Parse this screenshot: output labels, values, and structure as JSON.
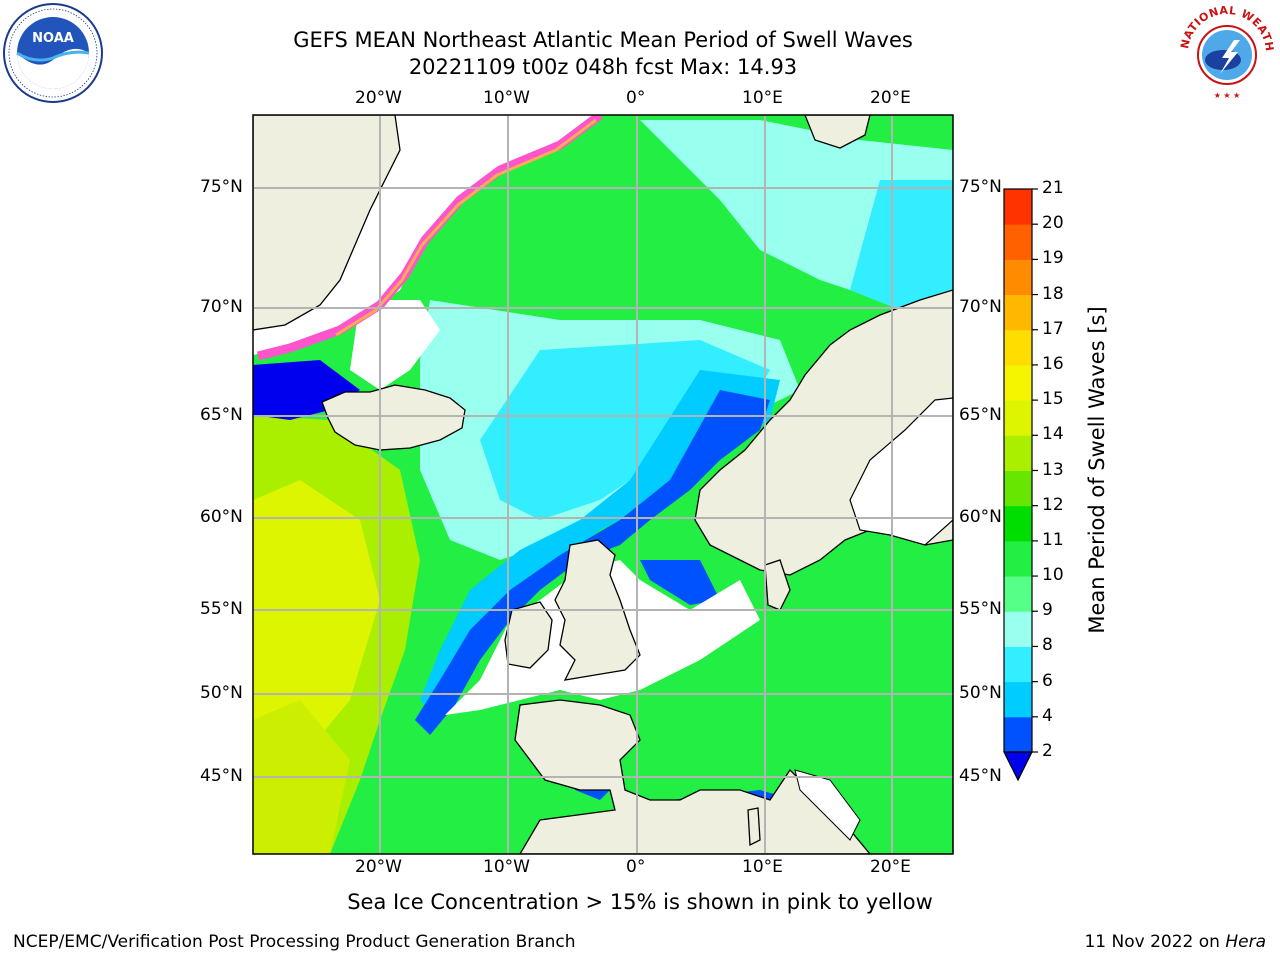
{
  "title_line1": "GEFS MEAN Northeast Atlantic Mean Period of Swell Waves",
  "title_line2": "20221109 t00z 048h fcst   Max: 14.93",
  "logos": {
    "left": "noaa-logo",
    "right": "national-weather-service-logo"
  },
  "logo_text": {
    "noaa": "NOAA",
    "nws": "NATIONAL WEATHER SERVICE"
  },
  "map": {
    "lon_ticks_top": [
      "20°W",
      "10°W",
      "0°",
      "10°E",
      "20°E"
    ],
    "lon_ticks_bottom": [
      "20°W",
      "10°W",
      "0°",
      "10°E",
      "20°E"
    ],
    "lat_ticks_left": [
      "75°N",
      "70°N",
      "65°N",
      "60°N",
      "55°N",
      "50°N",
      "45°N"
    ],
    "lat_ticks_right": [
      "75°N",
      "70°N",
      "65°N",
      "60°N",
      "55°N",
      "50°N",
      "45°N"
    ],
    "colors": {
      "land": "#efefdf",
      "gridline": "#b4b4b4",
      "coast": "#000000"
    }
  },
  "colorbar": {
    "label": "Mean Period of Swell Waves [s]",
    "ticks": [
      "2",
      "4",
      "6",
      "8",
      "9",
      "10",
      "11",
      "12",
      "13",
      "14",
      "15",
      "16",
      "17",
      "18",
      "19",
      "20",
      "21"
    ],
    "colors": [
      "#0052ff",
      "#00ccff",
      "#33eeff",
      "#99ffee",
      "#55ff88",
      "#22ee44",
      "#00dd00",
      "#66e600",
      "#aaee00",
      "#ddf500",
      "#f5f500",
      "#ffdd00",
      "#ffb800",
      "#ff8c00",
      "#ff6000",
      "#ff3300",
      "#ff0000"
    ],
    "under_color": "#0000ee"
  },
  "ice_note": "Sea Ice Concentration > 15% is shown in pink to yellow",
  "footer_left": "NCEP/EMC/Verification Post Processing Product Generation Branch",
  "footer_right_prefix": "11 Nov 2022 on ",
  "footer_right_host": "Hera"
}
